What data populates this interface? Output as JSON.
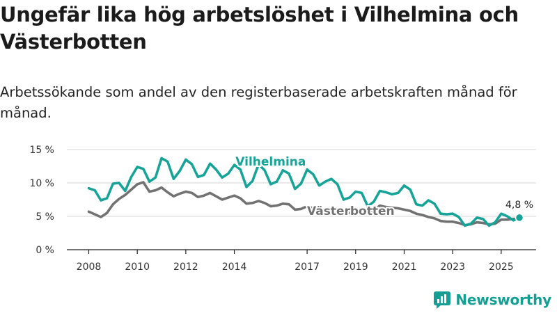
{
  "title": "Ungefär lika hög arbetslöshet i Vilhelmina och Västerbotten",
  "subtitle": "Arbetssökande som andel av den registerbaserade arbetskraften månad för månad.",
  "brand": {
    "name": "Newsworthy"
  },
  "colors": {
    "vilhelmina": "#17a398",
    "vasterbotten": "#727272",
    "grid": "#d6d6d6",
    "axis": "#222222",
    "brand": "#159e93"
  },
  "chart_data": {
    "type": "line",
    "title": "Ungefär lika hög arbetslöshet i Vilhelmina och Västerbotten",
    "xlabel": "",
    "ylabel": "",
    "xlim": [
      2007.9,
      2025.75
    ],
    "ylim": [
      0,
      15
    ],
    "grid": true,
    "yticks": [
      0,
      5,
      10,
      15
    ],
    "ytick_labels": [
      "0 %",
      "5 %",
      "10 %",
      "15 %"
    ],
    "xticks": [
      2008,
      2010,
      2012,
      2014,
      2017,
      2019,
      2021,
      2023,
      2025
    ],
    "xtick_labels": [
      "2008",
      "2010",
      "2012",
      "2014",
      "2017",
      "2019",
      "2021",
      "2023",
      "2025"
    ],
    "annotation": {
      "text": "4,8 %",
      "x": 2025.75,
      "y": 4.8
    },
    "series": [
      {
        "name": "Vilhelmina",
        "label_x": 2015.5,
        "label_y": 12.6,
        "x": [
          2008.0,
          2008.25,
          2008.5,
          2008.75,
          2009.0,
          2009.25,
          2009.5,
          2009.75,
          2010.0,
          2010.25,
          2010.5,
          2010.75,
          2011.0,
          2011.25,
          2011.5,
          2011.75,
          2012.0,
          2012.25,
          2012.5,
          2012.75,
          2013.0,
          2013.25,
          2013.5,
          2013.75,
          2014.0,
          2014.25,
          2014.5,
          2014.75,
          2015.0,
          2015.25,
          2015.5,
          2015.75,
          2016.0,
          2016.25,
          2016.5,
          2016.75,
          2017.0,
          2017.25,
          2017.5,
          2017.75,
          2018.0,
          2018.25,
          2018.5,
          2018.75,
          2019.0,
          2019.25,
          2019.5,
          2019.75,
          2020.0,
          2020.25,
          2020.5,
          2020.75,
          2021.0,
          2021.25,
          2021.5,
          2021.75,
          2022.0,
          2022.25,
          2022.5,
          2022.75,
          2023.0,
          2023.25,
          2023.5,
          2023.75,
          2024.0,
          2024.25,
          2024.5,
          2024.75,
          2025.0,
          2025.25,
          2025.5,
          2025.75
        ],
        "y": [
          9.2,
          8.9,
          7.4,
          7.7,
          9.9,
          10.0,
          8.8,
          10.9,
          12.4,
          12.1,
          10.2,
          10.8,
          13.7,
          13.2,
          10.6,
          11.8,
          13.5,
          12.8,
          10.9,
          11.2,
          12.9,
          12.0,
          10.8,
          11.4,
          12.7,
          12.0,
          9.4,
          10.3,
          12.8,
          11.9,
          9.8,
          10.2,
          11.9,
          11.4,
          9.1,
          9.9,
          12.0,
          11.3,
          9.6,
          10.2,
          10.6,
          9.8,
          7.5,
          7.8,
          8.7,
          8.5,
          6.5,
          7.2,
          8.8,
          8.6,
          8.3,
          8.5,
          9.6,
          9.0,
          6.8,
          6.6,
          7.4,
          6.9,
          5.4,
          5.3,
          5.4,
          4.9,
          3.6,
          3.9,
          4.8,
          4.6,
          3.6,
          4.1,
          5.4,
          5.0,
          4.4,
          4.8
        ]
      },
      {
        "name": "Västerbotten",
        "label_x": 2018.8,
        "label_y": 5.2,
        "x": [
          2008.0,
          2008.25,
          2008.5,
          2008.75,
          2009.0,
          2009.25,
          2009.5,
          2009.75,
          2010.0,
          2010.25,
          2010.5,
          2010.75,
          2011.0,
          2011.25,
          2011.5,
          2011.75,
          2012.0,
          2012.25,
          2012.5,
          2012.75,
          2013.0,
          2013.25,
          2013.5,
          2013.75,
          2014.0,
          2014.25,
          2014.5,
          2014.75,
          2015.0,
          2015.25,
          2015.5,
          2015.75,
          2016.0,
          2016.25,
          2016.5,
          2016.75,
          2017.0,
          2017.25,
          2017.5,
          2017.75,
          2018.0,
          2018.25,
          2018.5,
          2018.75,
          2019.0,
          2019.25,
          2019.5,
          2019.75,
          2020.0,
          2020.25,
          2020.5,
          2020.75,
          2021.0,
          2021.25,
          2021.5,
          2021.75,
          2022.0,
          2022.25,
          2022.5,
          2022.75,
          2023.0,
          2023.25,
          2023.5,
          2023.75,
          2024.0,
          2024.25,
          2024.5,
          2024.75,
          2025.0,
          2025.25,
          2025.5,
          2025.75
        ],
        "y": [
          5.7,
          5.3,
          4.9,
          5.5,
          6.8,
          7.6,
          8.2,
          9.0,
          9.8,
          10.1,
          8.7,
          8.9,
          9.3,
          8.6,
          8.0,
          8.4,
          8.7,
          8.5,
          7.9,
          8.1,
          8.5,
          8.0,
          7.5,
          7.8,
          8.1,
          7.7,
          6.9,
          7.0,
          7.3,
          7.0,
          6.5,
          6.6,
          6.9,
          6.8,
          6.0,
          6.1,
          6.5,
          6.2,
          5.6,
          5.8,
          6.0,
          5.8,
          5.4,
          5.5,
          5.7,
          5.6,
          5.6,
          5.9,
          6.6,
          6.4,
          6.3,
          6.2,
          6.0,
          5.8,
          5.4,
          5.2,
          4.9,
          4.7,
          4.3,
          4.2,
          4.2,
          4.0,
          3.7,
          3.8,
          4.1,
          4.0,
          3.8,
          3.9,
          4.5,
          4.5,
          4.6,
          4.7
        ]
      }
    ]
  }
}
